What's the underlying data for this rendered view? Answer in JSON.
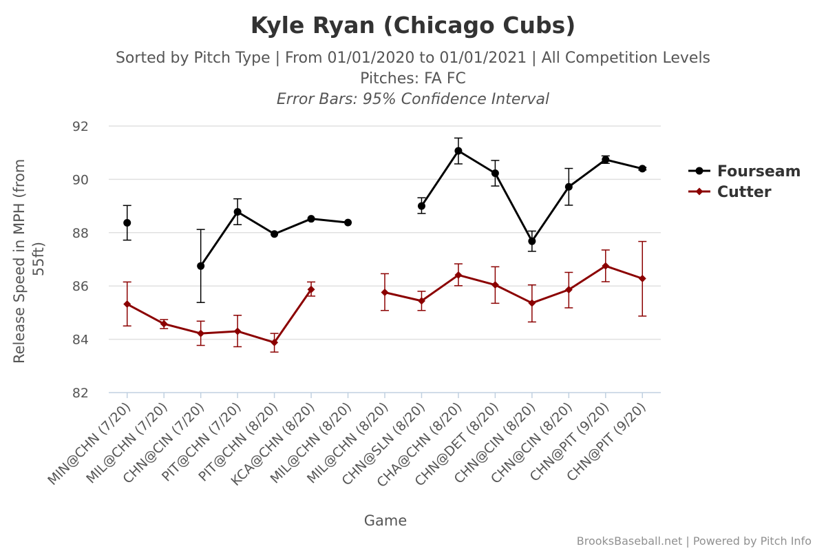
{
  "colors": {
    "fourseam": "#000000",
    "cutter": "#8b0000",
    "grid": "#e0e0e0",
    "axis": "#c0d0e0"
  },
  "chart_data": {
    "type": "line",
    "title": "Kyle Ryan (Chicago Cubs)",
    "subtitle_line1": "Sorted by Pitch Type | From 01/01/2020 to 01/01/2021 | All Competition Levels",
    "subtitle_line2": "Pitches: FA FC",
    "subtitle_line3": "Error Bars: 95% Confidence Interval",
    "xlabel": "Game",
    "ylabel": "Release Speed in MPH (from 55ft)",
    "ylim": [
      82,
      92
    ],
    "yticks": [
      "82",
      "84",
      "86",
      "88",
      "90",
      "92"
    ],
    "categories": [
      "MIN@CHN (7/20)",
      "MIL@CHN (7/20)",
      "CHN@CIN (7/20)",
      "PIT@CHN (7/20)",
      "PIT@CHN (8/20)",
      "KCA@CHN (8/20)",
      "MIL@CHN (8/20)",
      "MIL@CHN (8/20)",
      "CHN@SLN (8/20)",
      "CHA@CHN (8/20)",
      "CHN@DET (8/20)",
      "CHN@CIN (8/20)",
      "CHN@CIN (8/20)",
      "CHN@PIT (9/20)",
      "CHN@PIT (9/20)"
    ],
    "series": [
      {
        "name": "Fourseam",
        "marker": "circle",
        "values": [
          88.37,
          null,
          86.75,
          88.78,
          87.95,
          88.52,
          88.38,
          null,
          89.0,
          91.07,
          90.23,
          87.68,
          89.72,
          90.74,
          90.4
        ],
        "err_low": [
          87.72,
          null,
          85.38,
          88.3,
          null,
          null,
          null,
          null,
          88.72,
          90.58,
          89.75,
          87.3,
          89.03,
          90.6,
          90.35
        ],
        "err_high": [
          89.02,
          null,
          88.12,
          89.27,
          null,
          null,
          null,
          null,
          89.31,
          91.55,
          90.71,
          88.06,
          90.41,
          90.88,
          90.45
        ]
      },
      {
        "name": "Cutter",
        "marker": "diamond",
        "values": [
          85.32,
          84.58,
          84.22,
          84.3,
          83.88,
          85.87,
          null,
          85.76,
          85.44,
          86.41,
          86.04,
          85.36,
          85.86,
          86.75,
          86.28
        ],
        "err_low": [
          84.5,
          84.4,
          83.77,
          83.72,
          83.52,
          85.62,
          null,
          85.08,
          85.08,
          86.01,
          85.35,
          84.65,
          85.18,
          86.16,
          84.87
        ],
        "err_high": [
          86.15,
          84.74,
          84.68,
          84.9,
          84.22,
          86.15,
          null,
          86.46,
          85.8,
          86.83,
          86.72,
          86.04,
          86.51,
          87.35,
          87.67
        ]
      }
    ],
    "legend": [
      "Fourseam",
      "Cutter"
    ],
    "credit": "BrooksBaseball.net | Powered by Pitch Info"
  }
}
